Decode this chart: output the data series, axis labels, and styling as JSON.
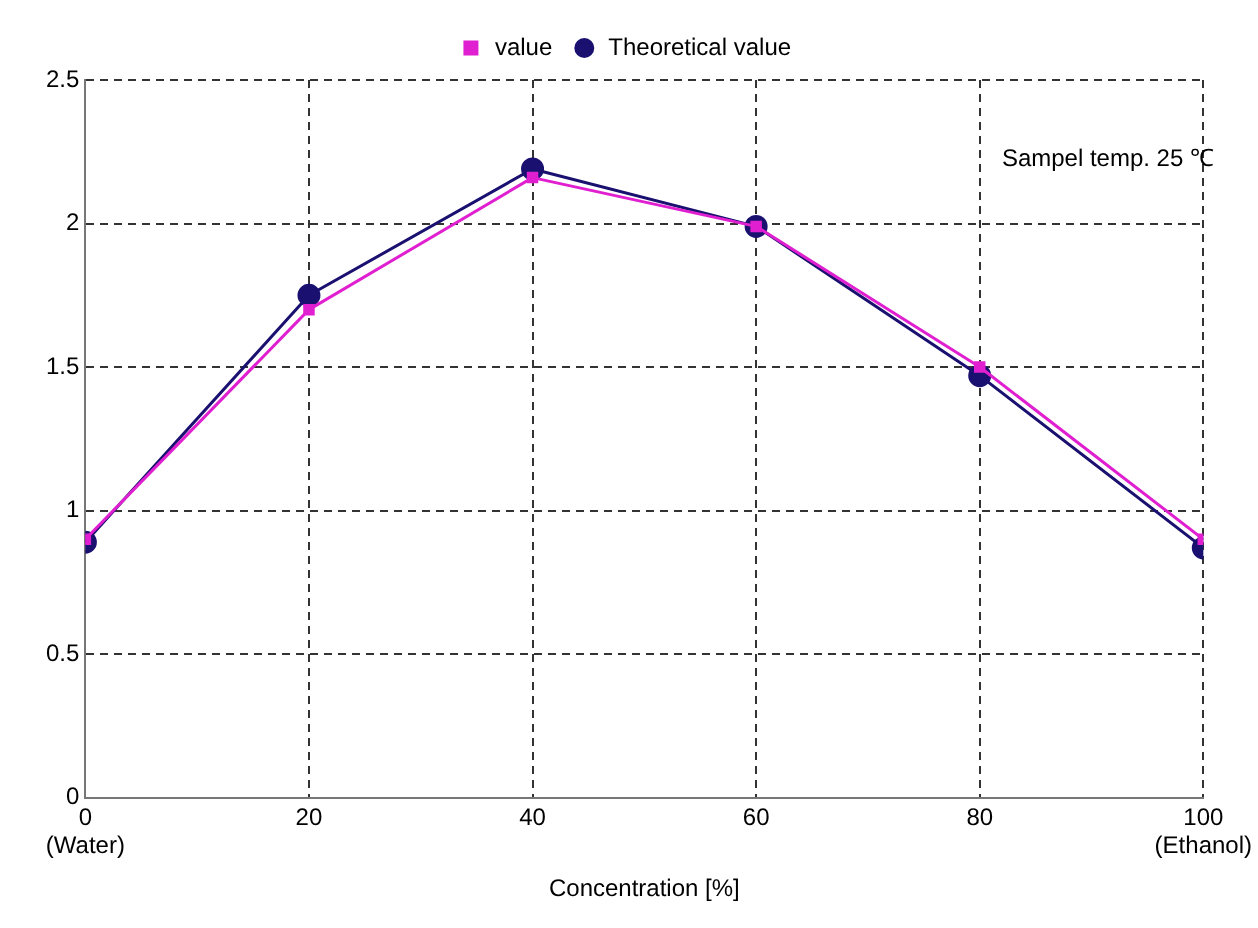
{
  "chart_data": {
    "type": "line",
    "xlabel": "Concentration [%]",
    "annotations": [
      "Sampel temp. 25 ℃"
    ],
    "x": [
      0,
      20,
      40,
      60,
      80,
      100
    ],
    "series": [
      {
        "name": "value",
        "color": "#e020d0",
        "marker": "square",
        "values": [
          0.9,
          1.7,
          2.16,
          1.99,
          1.5,
          0.9
        ]
      },
      {
        "name": "Theoretical value",
        "color": "#1a1070",
        "marker": "circle",
        "values": [
          0.89,
          1.75,
          2.19,
          1.99,
          1.47,
          0.87
        ]
      }
    ],
    "xlim": [
      0,
      100
    ],
    "xticks": [
      {
        "value": 0,
        "label": "0\n(Water)"
      },
      20,
      40,
      60,
      80,
      {
        "value": 100,
        "label": "100\n(Ethanol)"
      }
    ],
    "ylim": [
      0,
      2.5
    ],
    "yticks": [
      0,
      0.5,
      1,
      1.5,
      2,
      2.5
    ],
    "grid": true,
    "legend": "top",
    "line_style": "solid"
  }
}
